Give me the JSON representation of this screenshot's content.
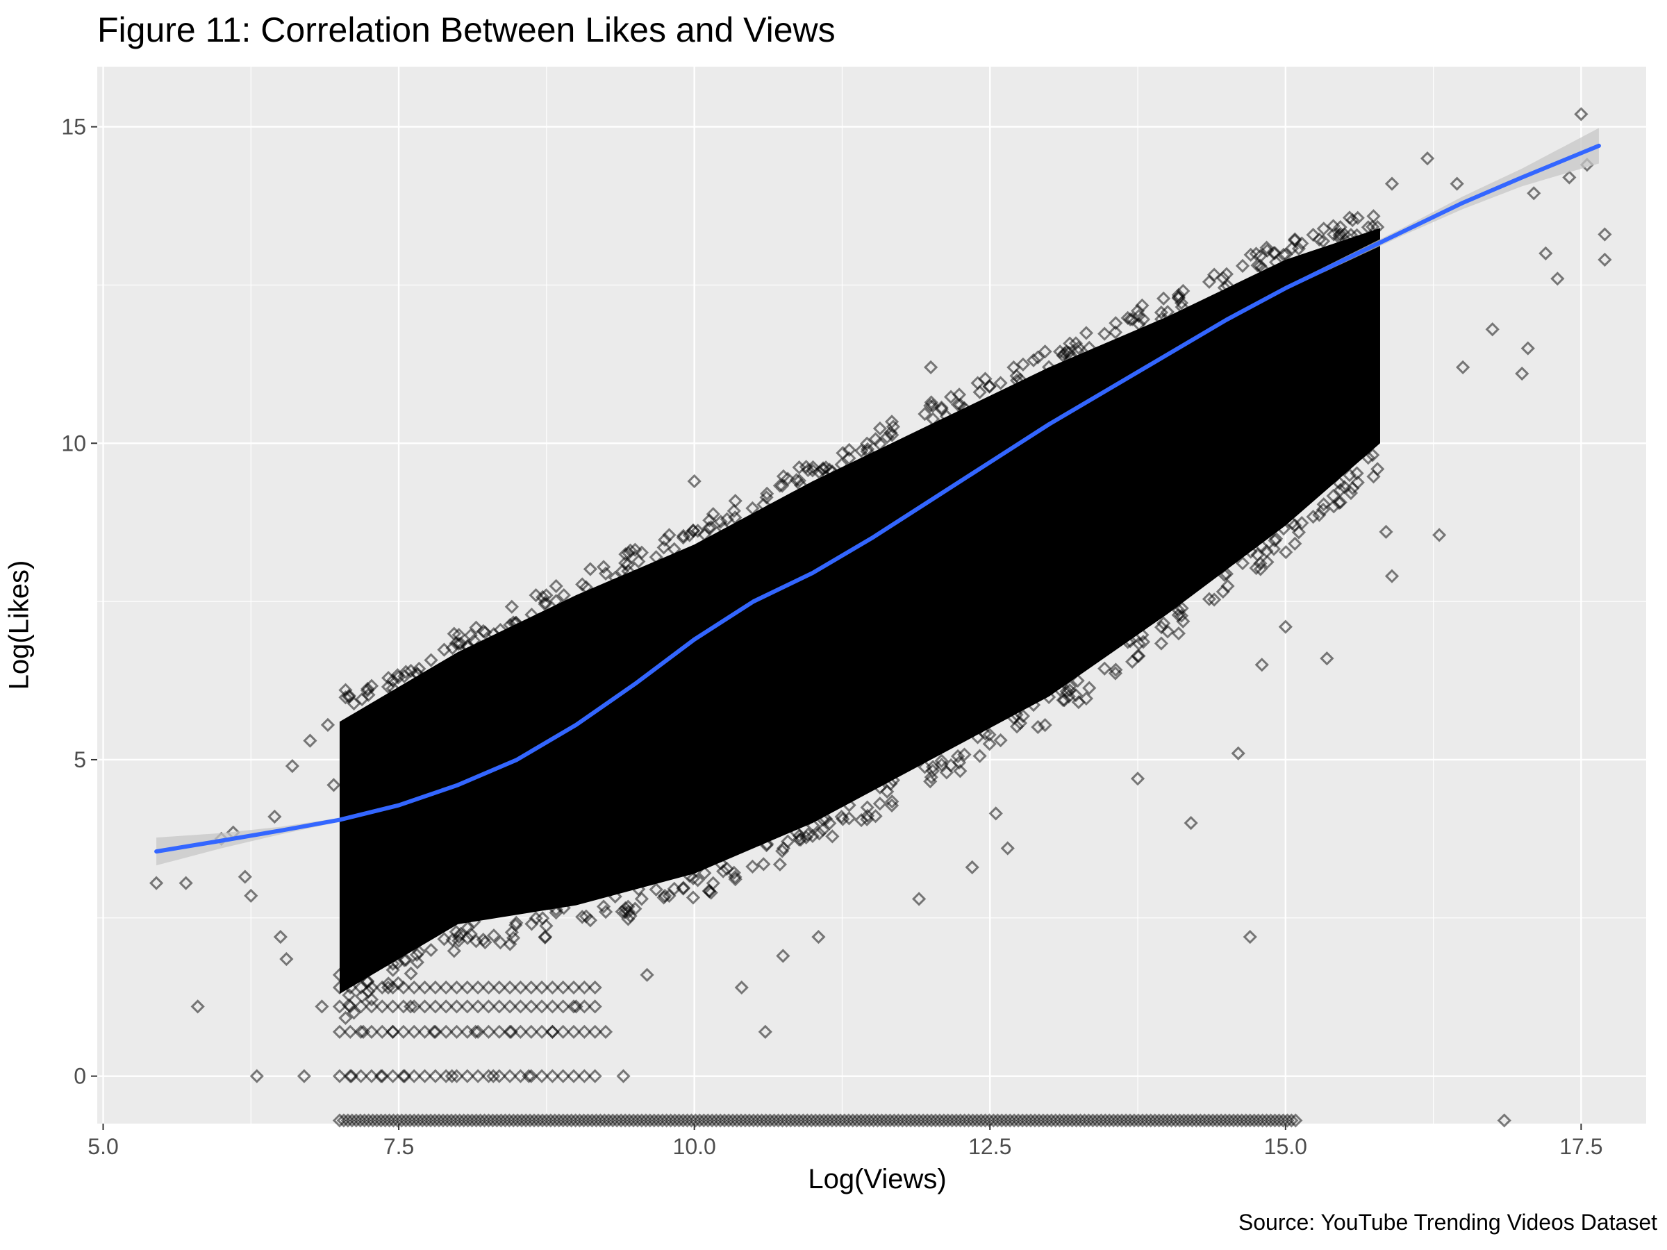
{
  "chart_data": {
    "type": "scatter",
    "title": "Figure 11: Correlation Between Likes and Views",
    "xlabel": "Log(Views)",
    "ylabel": "Log(Likes)",
    "caption": "Source: YouTube Trending Videos Dataset",
    "xlim": [
      4.95,
      18.05
    ],
    "ylim": [
      -0.75,
      15.95
    ],
    "x_ticks": [
      5.0,
      7.5,
      10.0,
      12.5,
      15.0,
      17.5
    ],
    "x_tick_labels": [
      "5.0",
      "7.5",
      "10.0",
      "12.5",
      "15.0",
      "17.5"
    ],
    "y_ticks": [
      0,
      5,
      10,
      15
    ],
    "y_tick_labels": [
      "0",
      "5",
      "10",
      "15"
    ],
    "grid": true,
    "panel_background": "#ebebeb",
    "grid_color": "#ffffff",
    "marker": "diamond",
    "marker_color": "#000000",
    "marker_opacity": 0.5,
    "smooth_color": "#3366ff",
    "ribbon_color": "#c7c7c7",
    "density_band": {
      "x": [
        7.0,
        8.0,
        9.0,
        10.0,
        11.0,
        12.0,
        13.0,
        14.0,
        15.0,
        15.8
      ],
      "lower": [
        1.3,
        2.4,
        2.7,
        3.2,
        4.0,
        5.0,
        6.0,
        7.3,
        8.7,
        10.0
      ],
      "upper": [
        5.6,
        6.7,
        7.6,
        8.4,
        9.4,
        10.3,
        11.2,
        12.0,
        12.9,
        13.4
      ]
    },
    "floor_points": {
      "x_start": 7.0,
      "x_end": 15.1,
      "y": -0.7
    },
    "outliers": [
      {
        "x": 5.45,
        "y": 3.05
      },
      {
        "x": 5.7,
        "y": 3.05
      },
      {
        "x": 5.8,
        "y": 1.1
      },
      {
        "x": 6.0,
        "y": 3.75
      },
      {
        "x": 6.1,
        "y": 3.85
      },
      {
        "x": 6.2,
        "y": 3.15
      },
      {
        "x": 6.25,
        "y": 2.85
      },
      {
        "x": 6.3,
        "y": 0.0
      },
      {
        "x": 6.45,
        "y": 4.1
      },
      {
        "x": 6.5,
        "y": 2.2
      },
      {
        "x": 6.55,
        "y": 1.85
      },
      {
        "x": 6.6,
        "y": 4.9
      },
      {
        "x": 6.7,
        "y": 0.0
      },
      {
        "x": 6.75,
        "y": 5.3
      },
      {
        "x": 6.85,
        "y": 1.1
      },
      {
        "x": 6.9,
        "y": 5.55
      },
      {
        "x": 6.95,
        "y": 4.6
      },
      {
        "x": 7.05,
        "y": 6.1
      },
      {
        "x": 7.0,
        "y": 1.6
      },
      {
        "x": 7.1,
        "y": 0.0
      },
      {
        "x": 7.2,
        "y": 0.7
      },
      {
        "x": 7.35,
        "y": 0.0
      },
      {
        "x": 7.45,
        "y": 0.7
      },
      {
        "x": 7.55,
        "y": 0.0
      },
      {
        "x": 7.6,
        "y": 1.1
      },
      {
        "x": 7.8,
        "y": 0.7
      },
      {
        "x": 7.95,
        "y": 0.0
      },
      {
        "x": 8.15,
        "y": 0.7
      },
      {
        "x": 8.3,
        "y": 0.0
      },
      {
        "x": 8.45,
        "y": 0.7
      },
      {
        "x": 8.6,
        "y": 0.0
      },
      {
        "x": 8.8,
        "y": 0.7
      },
      {
        "x": 9.0,
        "y": 1.1
      },
      {
        "x": 9.25,
        "y": 0.7
      },
      {
        "x": 9.4,
        "y": 0.0
      },
      {
        "x": 9.6,
        "y": 1.6
      },
      {
        "x": 10.0,
        "y": 9.4
      },
      {
        "x": 10.4,
        "y": 1.4
      },
      {
        "x": 10.6,
        "y": 0.7
      },
      {
        "x": 10.75,
        "y": 1.9
      },
      {
        "x": 11.05,
        "y": 2.2
      },
      {
        "x": 11.9,
        "y": 2.8
      },
      {
        "x": 12.0,
        "y": 11.2
      },
      {
        "x": 12.35,
        "y": 3.3
      },
      {
        "x": 12.55,
        "y": 4.15
      },
      {
        "x": 12.65,
        "y": 3.6
      },
      {
        "x": 13.75,
        "y": 4.7
      },
      {
        "x": 14.2,
        "y": 4.0
      },
      {
        "x": 14.6,
        "y": 5.1
      },
      {
        "x": 14.7,
        "y": 2.2
      },
      {
        "x": 14.8,
        "y": 6.5
      },
      {
        "x": 15.0,
        "y": 7.1
      },
      {
        "x": 15.35,
        "y": 6.6
      },
      {
        "x": 15.85,
        "y": 8.6
      },
      {
        "x": 15.9,
        "y": 7.9
      },
      {
        "x": 16.3,
        "y": 8.55
      },
      {
        "x": 16.5,
        "y": 11.2
      },
      {
        "x": 16.75,
        "y": 11.8
      },
      {
        "x": 17.0,
        "y": 11.1
      },
      {
        "x": 17.05,
        "y": 11.5
      },
      {
        "x": 17.2,
        "y": 13.0
      },
      {
        "x": 17.3,
        "y": 12.6
      },
      {
        "x": 17.4,
        "y": 14.2
      },
      {
        "x": 17.5,
        "y": 15.2
      },
      {
        "x": 17.55,
        "y": 14.4
      },
      {
        "x": 17.7,
        "y": 13.3
      },
      {
        "x": 17.7,
        "y": 12.9
      },
      {
        "x": 16.85,
        "y": -0.7
      },
      {
        "x": 15.9,
        "y": 14.1
      },
      {
        "x": 16.2,
        "y": 14.5
      },
      {
        "x": 16.45,
        "y": 14.1
      },
      {
        "x": 17.1,
        "y": 13.95
      }
    ],
    "smooth_line": {
      "x": [
        5.45,
        6.0,
        6.5,
        7.0,
        7.5,
        8.0,
        8.5,
        9.0,
        9.5,
        10.0,
        10.5,
        11.0,
        11.5,
        12.0,
        12.5,
        13.0,
        13.5,
        14.0,
        14.5,
        15.0,
        15.5,
        16.0,
        16.5,
        17.0,
        17.65
      ],
      "y": [
        3.55,
        3.72,
        3.88,
        4.05,
        4.28,
        4.6,
        5.0,
        5.55,
        6.2,
        6.9,
        7.5,
        7.95,
        8.5,
        9.1,
        9.7,
        10.3,
        10.85,
        11.4,
        11.95,
        12.45,
        12.9,
        13.35,
        13.8,
        14.2,
        14.7
      ]
    },
    "smooth_ci": {
      "x": [
        5.45,
        6.0,
        6.5,
        7.0,
        15.0,
        16.0,
        17.0,
        17.65
      ],
      "halfwidth": [
        0.22,
        0.12,
        0.06,
        0.03,
        0.03,
        0.06,
        0.14,
        0.28
      ]
    }
  }
}
